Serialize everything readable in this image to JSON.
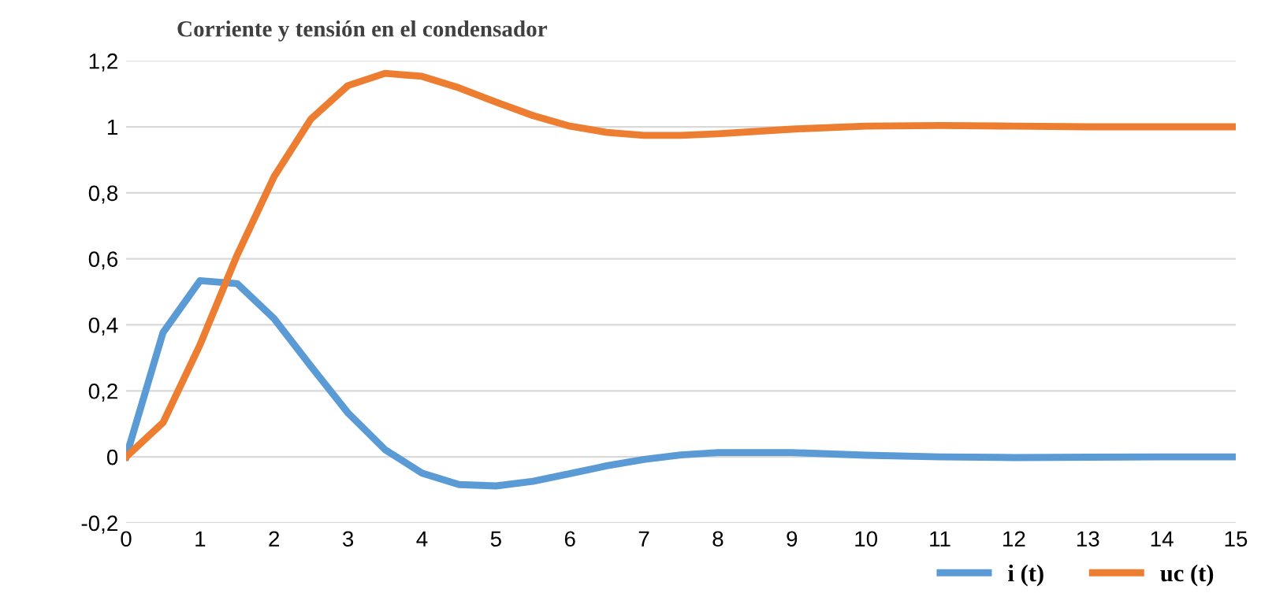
{
  "chart_data": {
    "type": "line",
    "title": "Corriente y tensión en el condensador",
    "x": [
      0,
      0.5,
      1,
      1.5,
      2,
      2.5,
      3,
      3.5,
      4,
      4.5,
      5,
      5.5,
      6,
      6.5,
      7,
      7.5,
      8,
      9,
      10,
      11,
      12,
      13,
      14,
      15
    ],
    "series": [
      {
        "name": "i (t)",
        "color": "#5b9bd5",
        "values": [
          0,
          0.377,
          0.534,
          0.525,
          0.419,
          0.274,
          0.133,
          0.022,
          -0.049,
          -0.084,
          -0.088,
          -0.074,
          -0.051,
          -0.027,
          -0.008,
          0.006,
          0.013,
          0.013,
          0.005,
          0,
          -0.002,
          -0.001,
          0,
          0
        ]
      },
      {
        "name": "uc (t)",
        "color": "#ed7d31",
        "values": [
          0,
          0.104,
          0.34,
          0.611,
          0.849,
          1.024,
          1.125,
          1.162,
          1.153,
          1.118,
          1.075,
          1.034,
          1.002,
          0.983,
          0.974,
          0.974,
          0.979,
          0.993,
          1.002,
          1.004,
          1.002,
          1.0,
          1.0,
          1.0
        ]
      }
    ],
    "xlim": [
      0,
      15
    ],
    "xticks": [
      0,
      1,
      2,
      3,
      4,
      5,
      6,
      7,
      8,
      9,
      10,
      11,
      12,
      13,
      14,
      15
    ],
    "ylim": [
      -0.2,
      1.2
    ],
    "yticks": [
      {
        "value": -0.2,
        "label": "-0,2"
      },
      0,
      {
        "value": 0.2,
        "label": "0,2"
      },
      {
        "value": 0.4,
        "label": "0,4"
      },
      {
        "value": 0.6,
        "label": "0,6"
      },
      {
        "value": 0.8,
        "label": "0,8"
      },
      1,
      {
        "value": 1.2,
        "label": "1,2"
      }
    ],
    "grid": "y",
    "legend": "bottom right",
    "marker": "none",
    "line_style": "solid"
  }
}
